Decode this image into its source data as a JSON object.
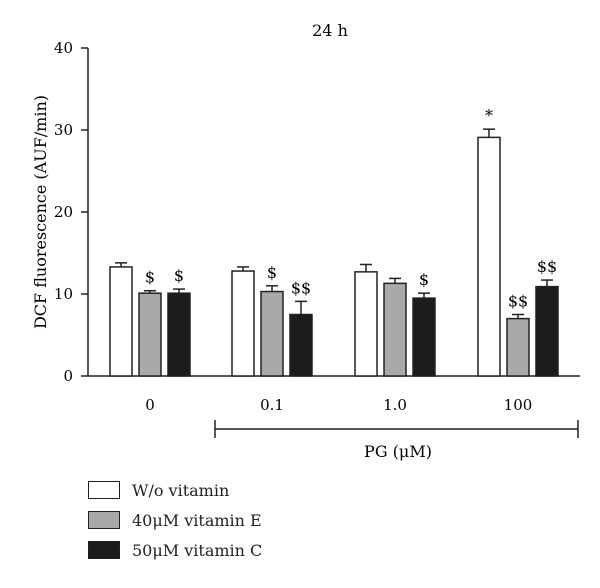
{
  "chart_data": {
    "type": "bar",
    "title": "24 h",
    "ylabel": "DCF fluorescence (AUF/min)",
    "xlabel": "PG (μM)",
    "ylim": [
      0,
      40
    ],
    "yticks": [
      "0",
      "10",
      "20",
      "30",
      "40"
    ],
    "categories": [
      "0",
      "0.1",
      "1.0",
      "100"
    ],
    "series": [
      {
        "name": "W/o vitamin",
        "color": "#ffffff",
        "values": [
          13.3,
          12.8,
          12.7,
          29.1
        ],
        "errors": [
          0.5,
          0.5,
          0.9,
          1.0
        ],
        "labels": [
          "",
          "",
          "",
          "*"
        ]
      },
      {
        "name": "40μM vitamin E",
        "color": "#a9a9a9",
        "values": [
          10.1,
          10.3,
          11.3,
          7.0
        ],
        "errors": [
          0.3,
          0.7,
          0.6,
          0.5
        ],
        "labels": [
          "$",
          "$",
          "",
          "$$"
        ]
      },
      {
        "name": "50μM vitamin C",
        "color": "#1c1c1c",
        "values": [
          10.1,
          7.5,
          9.5,
          10.9
        ],
        "errors": [
          0.5,
          1.6,
          0.6,
          0.8
        ],
        "labels": [
          "$",
          "$$",
          "$",
          "$$"
        ]
      }
    ],
    "grid": false,
    "legend": "bottom-left"
  }
}
